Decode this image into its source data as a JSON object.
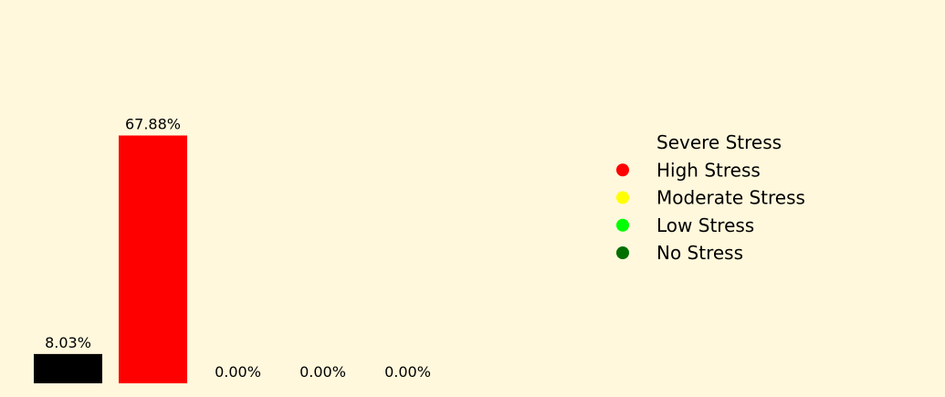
{
  "chart_data": {
    "type": "bar",
    "categories": [
      "Severe Stress",
      "High Stress",
      "Moderate Stress",
      "Low Stress",
      "No Stress"
    ],
    "values": [
      8.03,
      67.88,
      0.0,
      0.0,
      0.0
    ],
    "value_labels": [
      "8.03%",
      "67.88%",
      "0.00%",
      "0.00%",
      "0.00%"
    ],
    "colors": [
      "#000000",
      "#ff0000",
      "#ffff00",
      "#00ff00",
      "#007000"
    ],
    "title": "",
    "xlabel": "",
    "ylabel": "",
    "ylim": [
      0,
      100
    ],
    "grid": false,
    "legend": {
      "placement": "right",
      "entries": [
        "Severe Stress",
        "High Stress",
        "Moderate Stress",
        "Low Stress",
        "No Stress"
      ]
    },
    "background_color": "#fff8dc"
  }
}
